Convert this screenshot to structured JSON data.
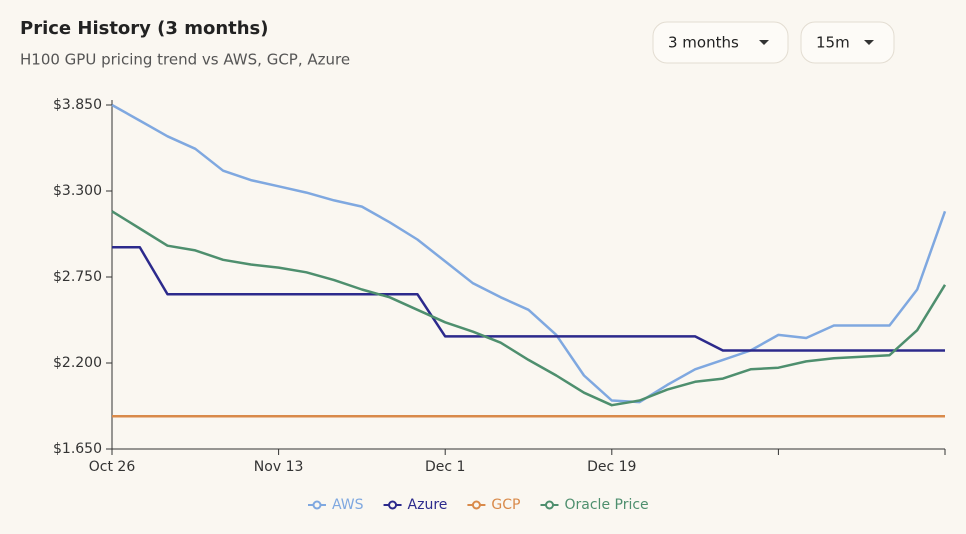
{
  "chart_data": {
    "type": "line",
    "title": "Price History (3 months)",
    "subtitle": "H100 GPU pricing trend vs AWS, GCP, Azure",
    "categories": [
      "Oct 26",
      null,
      null,
      null,
      null,
      null,
      "Nov 13",
      null,
      null,
      null,
      null,
      null,
      "Dec 1",
      null,
      null,
      null,
      null,
      null,
      "Dec 19",
      null,
      null,
      null,
      null,
      null,
      null,
      null,
      null,
      null,
      null,
      null,
      null
    ],
    "series": [
      {
        "name": "AWS",
        "color": "#7fa8e0",
        "values": [
          3.85,
          3.75,
          3.65,
          3.57,
          3.43,
          3.37,
          3.33,
          3.29,
          3.24,
          3.2,
          3.1,
          2.99,
          2.85,
          2.71,
          2.62,
          2.54,
          2.38,
          2.12,
          1.96,
          1.95,
          2.06,
          2.16,
          2.22,
          2.28,
          2.38,
          2.36,
          2.44,
          2.44,
          2.44,
          2.67,
          3.17
        ]
      },
      {
        "name": "Azure",
        "color": "#2c2a8c",
        "values": [
          2.94,
          2.94,
          2.64,
          2.64,
          2.64,
          2.64,
          2.64,
          2.64,
          2.64,
          2.64,
          2.64,
          2.64,
          2.37,
          2.37,
          2.37,
          2.37,
          2.37,
          2.37,
          2.37,
          2.37,
          2.37,
          2.37,
          2.28,
          2.28,
          2.28,
          2.28,
          2.28,
          2.28,
          2.28,
          2.28,
          2.28
        ]
      },
      {
        "name": "GCP",
        "color": "#d98a4a",
        "values": [
          1.86,
          1.86,
          1.86,
          1.86,
          1.86,
          1.86,
          1.86,
          1.86,
          1.86,
          1.86,
          1.86,
          1.86,
          1.86,
          1.86,
          1.86,
          1.86,
          1.86,
          1.86,
          1.86,
          1.86,
          1.86,
          1.86,
          1.86,
          1.86,
          1.86,
          1.86,
          1.86,
          1.86,
          1.86,
          1.86,
          1.86
        ]
      },
      {
        "name": "Oracle Price",
        "color": "#4e8f6e",
        "values": [
          3.17,
          3.06,
          2.95,
          2.92,
          2.86,
          2.83,
          2.81,
          2.78,
          2.73,
          2.67,
          2.62,
          2.54,
          2.46,
          2.4,
          2.33,
          2.22,
          2.12,
          2.01,
          1.93,
          1.96,
          2.03,
          2.08,
          2.1,
          2.16,
          2.17,
          2.21,
          2.23,
          2.24,
          2.25,
          2.41,
          2.7
        ]
      }
    ],
    "ylim": [
      1.65,
      3.85
    ],
    "yticks": [
      {
        "value": 1.65,
        "label": "$1.650"
      },
      {
        "value": 2.2,
        "label": "$2.200"
      },
      {
        "value": 2.75,
        "label": "$2.750"
      },
      {
        "value": 3.3,
        "label": "$3.300"
      },
      {
        "value": 3.85,
        "label": "$3.850"
      }
    ],
    "grid": false,
    "legend": "bottom"
  },
  "controls": [
    "3 months",
    "15m"
  ]
}
